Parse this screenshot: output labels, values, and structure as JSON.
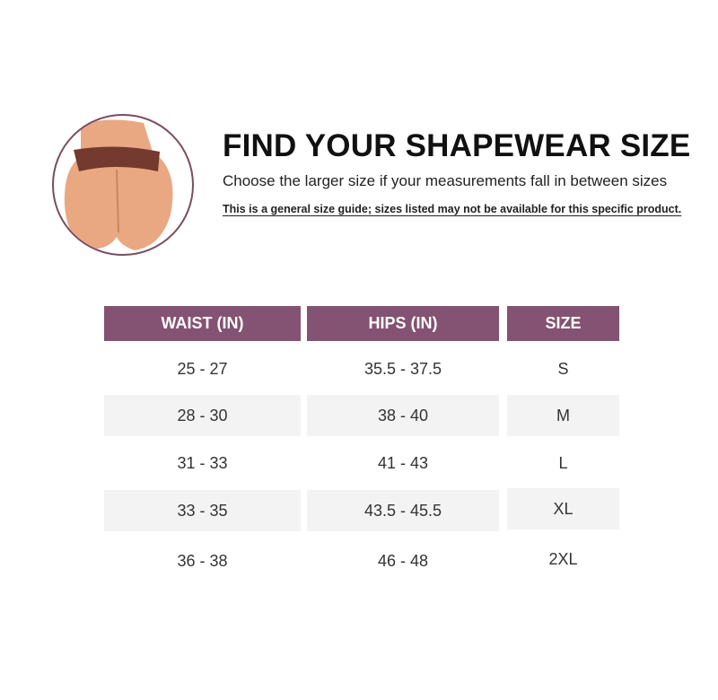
{
  "header": {
    "title": "FIND YOUR SHAPEWEAR SIZE",
    "subtitle": "Choose the larger size if your measurements fall in between sizes",
    "disclaimer": "This is a general size guide; sizes listed may not be available for this specific product."
  },
  "colors": {
    "accent": "#845272",
    "row_shade": "#f4f3f4"
  },
  "table": {
    "columns": [
      "WAIST (IN)",
      "HIPS (IN)",
      "SIZE"
    ],
    "rows": [
      [
        "25 - 27",
        "35.5 - 37.5",
        "S"
      ],
      [
        "28 - 30",
        "38 - 40",
        "M"
      ],
      [
        "31 - 33",
        "41 - 43",
        "L"
      ],
      [
        "33 - 35",
        "43.5 - 45.5",
        "XL"
      ],
      [
        "36 - 38",
        "46 - 48",
        "2XL"
      ]
    ]
  }
}
